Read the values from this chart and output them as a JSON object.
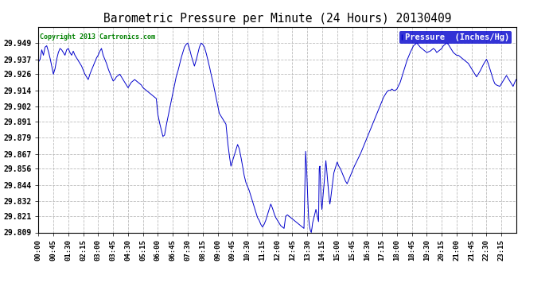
{
  "title": "Barometric Pressure per Minute (24 Hours) 20130409",
  "copyright": "Copyright 2013 Cartronics.com",
  "legend_label": "Pressure  (Inches/Hg)",
  "ylim_min": 29.809,
  "ylim_max": 29.961,
  "yticks": [
    29.809,
    29.821,
    29.832,
    29.844,
    29.856,
    29.867,
    29.879,
    29.891,
    29.902,
    29.914,
    29.926,
    29.937,
    29.949
  ],
  "line_color": "#0000cc",
  "background_color": "#ffffff",
  "grid_color": "#bbbbbb",
  "legend_bg": "#0000cc",
  "legend_fg": "#ffffff",
  "xtick_labels": [
    "00:00",
    "00:45",
    "01:30",
    "02:15",
    "03:00",
    "03:45",
    "04:30",
    "05:15",
    "06:00",
    "06:45",
    "07:30",
    "08:15",
    "09:00",
    "09:45",
    "10:30",
    "11:15",
    "12:00",
    "12:45",
    "13:30",
    "14:15",
    "15:00",
    "15:45",
    "16:30",
    "17:15",
    "18:00",
    "18:45",
    "19:30",
    "20:15",
    "21:00",
    "21:45",
    "22:30",
    "23:15"
  ]
}
